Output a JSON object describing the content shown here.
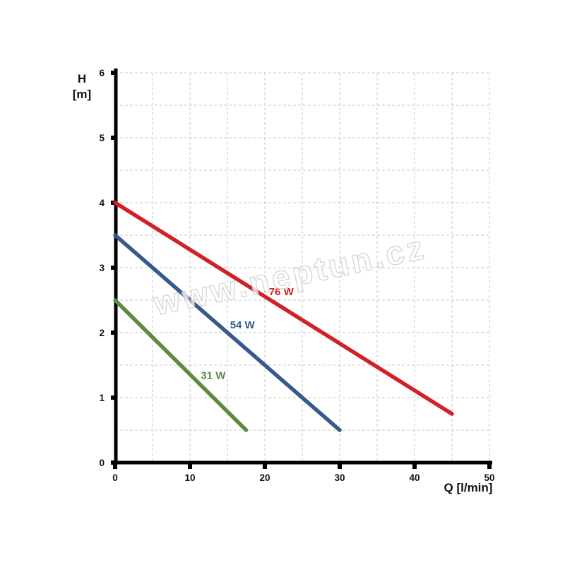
{
  "watermark_text": "www.neptun.cz",
  "axes": {
    "y_title": "H\n[m]",
    "x_title": "Q [l/min]"
  },
  "style": {
    "background": "#ffffff",
    "axis_color": "#000000",
    "grid_color": "#c9c9c9",
    "tick_label_color": "#111111"
  },
  "chart_data": {
    "type": "line",
    "title": "",
    "xlabel": "Q [l/min]",
    "ylabel": "H [m]",
    "xlim": [
      0,
      50
    ],
    "ylim": [
      0,
      6
    ],
    "x_ticks": [
      0,
      10,
      20,
      30,
      40,
      50
    ],
    "y_ticks": [
      0,
      1,
      2,
      3,
      4,
      5,
      6
    ],
    "x_grid_step": 5,
    "y_grid_step": 0.5,
    "grid": true,
    "legend_position": "inline-labels",
    "series": [
      {
        "name": "76 W",
        "color": "#d22027",
        "points": [
          [
            0,
            4.0
          ],
          [
            45,
            0.75
          ]
        ],
        "label_at": [
          22.2,
          2.63
        ]
      },
      {
        "name": "54 W",
        "color": "#365a8c",
        "points": [
          [
            0,
            3.5
          ],
          [
            30,
            0.5
          ]
        ],
        "label_at": [
          17.0,
          2.12
        ]
      },
      {
        "name": "31 W",
        "color": "#5d8b42",
        "points": [
          [
            0,
            2.5
          ],
          [
            17.5,
            0.5
          ]
        ],
        "label_at": [
          13.1,
          1.34
        ]
      }
    ]
  }
}
